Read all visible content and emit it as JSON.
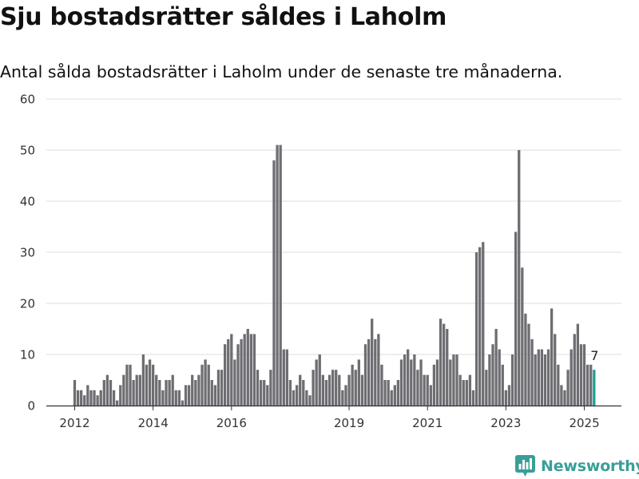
{
  "title": "Sju bostadsrätter såldes i Laholm",
  "subtitle": "Antal sålda bostadsrätter i Laholm under de senaste tre månaderna.",
  "brand": "Newsworthy",
  "colors": {
    "bar": "#6e6d72",
    "highlight": "#1f9e98",
    "grid": "#dcdcdc",
    "axis": "#333333",
    "brand": "#3a9e98"
  },
  "chart_data": {
    "type": "bar",
    "title": "Sju bostadsrätter såldes i Laholm",
    "subtitle": "Antal sålda bostadsrätter i Laholm under de senaste tre månaderna.",
    "xlabel": "",
    "ylabel": "",
    "ylim": [
      0,
      60
    ],
    "yticks": [
      0,
      10,
      20,
      30,
      40,
      50,
      60
    ],
    "xtick_labels": [
      {
        "label": "2012",
        "index": 0
      },
      {
        "label": "2014",
        "index": 24
      },
      {
        "label": "2016",
        "index": 48
      },
      {
        "label": "2019",
        "index": 84
      },
      {
        "label": "2021",
        "index": 108
      },
      {
        "label": "2023",
        "index": 132
      },
      {
        "label": "2025",
        "index": 156
      }
    ],
    "grid": true,
    "legend": "none",
    "highlight_last": true,
    "last_value_label": "7",
    "values": [
      5,
      3,
      3,
      2,
      4,
      3,
      3,
      2,
      3,
      5,
      6,
      5,
      3,
      1,
      4,
      6,
      8,
      8,
      5,
      6,
      6,
      10,
      8,
      9,
      8,
      6,
      5,
      3,
      5,
      5,
      6,
      3,
      3,
      1,
      4,
      4,
      6,
      5,
      6,
      8,
      9,
      8,
      5,
      4,
      7,
      7,
      12,
      13,
      14,
      9,
      12,
      13,
      14,
      15,
      14,
      14,
      7,
      5,
      5,
      4,
      7,
      48,
      51,
      51,
      11,
      11,
      5,
      3,
      4,
      6,
      5,
      3,
      2,
      7,
      9,
      10,
      6,
      5,
      6,
      7,
      7,
      6,
      3,
      4,
      6,
      8,
      7,
      9,
      6,
      12,
      13,
      17,
      13,
      14,
      8,
      5,
      5,
      3,
      4,
      5,
      9,
      10,
      11,
      9,
      10,
      7,
      9,
      6,
      6,
      4,
      8,
      9,
      17,
      16,
      15,
      9,
      10,
      10,
      6,
      5,
      5,
      6,
      3,
      30,
      31,
      32,
      7,
      10,
      12,
      15,
      11,
      8,
      3,
      4,
      10,
      34,
      50,
      27,
      18,
      16,
      13,
      10,
      11,
      11,
      10,
      11,
      19,
      14,
      8,
      4,
      3,
      7,
      11,
      14,
      16,
      12,
      12,
      8,
      8,
      7
    ]
  }
}
